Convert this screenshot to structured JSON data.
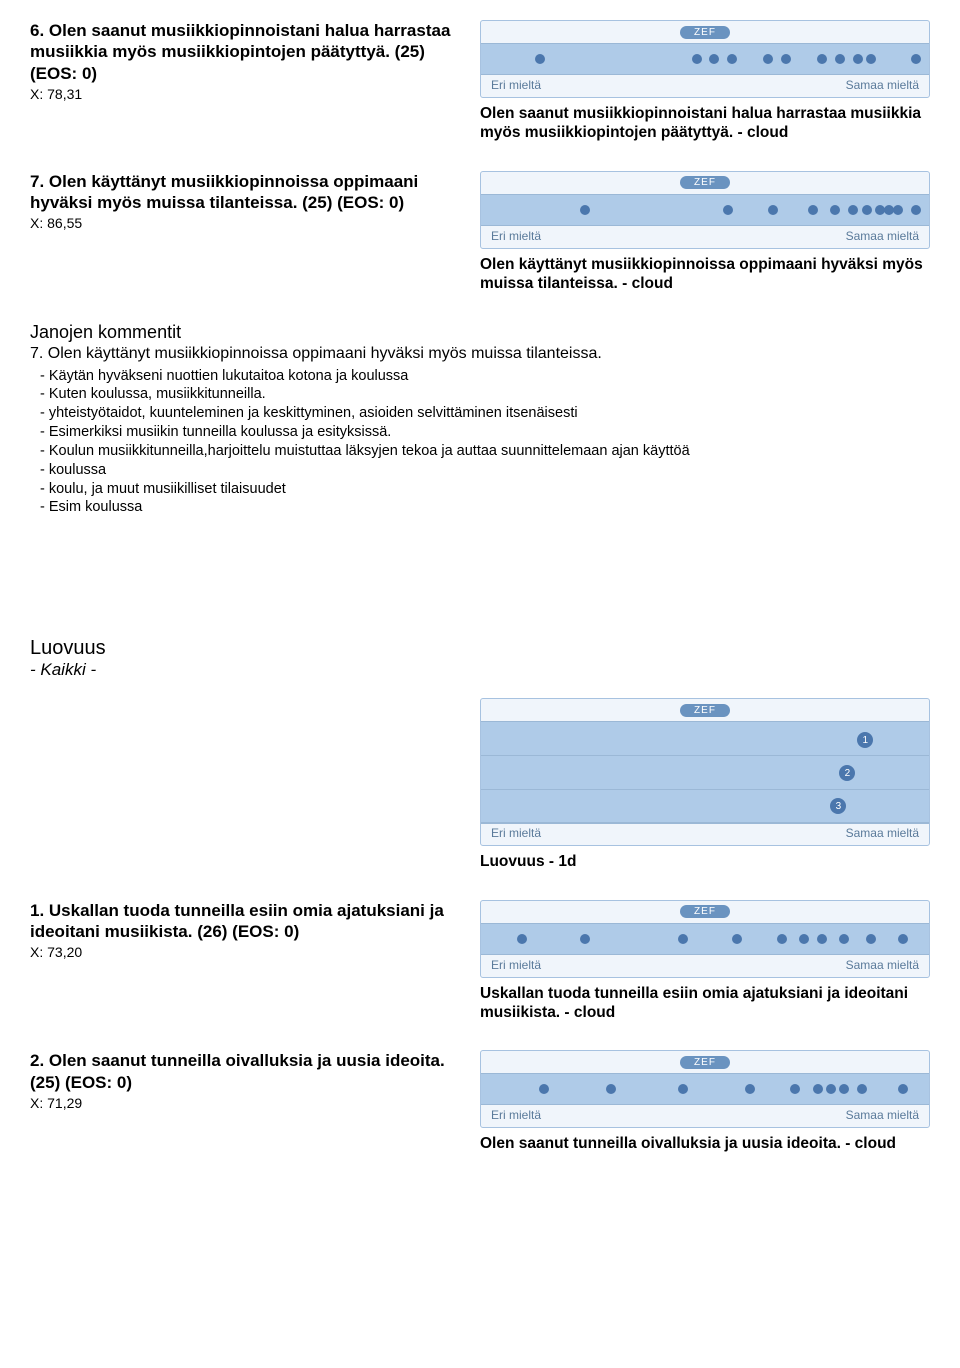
{
  "colors": {
    "chart_bg": "#f0f5fb",
    "chart_border": "#a7c2e0",
    "cloud_bg": "#afcbe8",
    "dot": "#4b77ad",
    "badge_bg": "#6a93c0",
    "footer_text": "#5a7a9a"
  },
  "zef_label": "ZEF",
  "axis": {
    "left": "Eri mieltä",
    "right": "Samaa mieltä"
  },
  "q6": {
    "title": "6. Olen saanut musiikkiopinnoistani halua harrastaa musiikkia myös musiikkiopintojen päätyttyä. (25) (EOS: 0)",
    "x": "X: 78,31",
    "caption": "Olen saanut musiikkiopinnoistani halua harrastaa musiikkia myös musiikkiopintojen päätyttyä. - cloud",
    "dots_pct": [
      12,
      47,
      51,
      55,
      63,
      67,
      75,
      79,
      83,
      86,
      96
    ]
  },
  "q7": {
    "title": "7. Olen käyttänyt musiikkiopinnoissa oppimaani hyväksi myös muissa tilanteissa. (25) (EOS: 0)",
    "x": "X: 86,55",
    "caption": "Olen käyttänyt musiikkiopinnoissa oppimaani hyväksi myös muissa tilanteissa. - cloud",
    "dots_pct": [
      22,
      54,
      64,
      73,
      78,
      82,
      85,
      88,
      90,
      92,
      96
    ]
  },
  "comments": {
    "header": "Janojen kommentit",
    "qline": "7. Olen käyttänyt musiikkiopinnoissa oppimaani hyväksi myös muissa tilanteissa.",
    "items": [
      "- Käytän hyväkseni nuottien lukutaitoa kotona ja koulussa",
      "- Kuten koulussa, musiikkitunneilla.",
      "- yhteistyötaidot, kuunteleminen ja keskittyminen, asioiden selvittäminen itsenäisesti",
      "- Esimerkiksi musiikin tunneilla koulussa ja esityksissä.",
      "- Koulun musiikkitunneilla,harjoittelu muistuttaa läksyjen tekoa ja auttaa suunnittelemaan ajan käyttöä",
      "- koulussa",
      "- koulu, ja muut musiikilliset tilaisuudet",
      "- Esim koulussa"
    ]
  },
  "luovuus": {
    "title": "Luovuus",
    "sub": "- Kaikki -",
    "overview_caption": "Luovuus - 1d",
    "num_positions": [
      {
        "n": "1",
        "left_pct": 84,
        "row": 0
      },
      {
        "n": "2",
        "left_pct": 80,
        "row": 1
      },
      {
        "n": "3",
        "left_pct": 78,
        "row": 2
      }
    ]
  },
  "lq1": {
    "title": "1. Uskallan tuoda tunneilla esiin omia ajatuksiani ja ideoitani musiikista. (26) (EOS: 0)",
    "x": "X: 73,20",
    "caption": "Uskallan tuoda tunneilla esiin omia ajatuksiani ja ideoitani musiikista. - cloud",
    "dots_pct": [
      8,
      22,
      44,
      56,
      66,
      71,
      75,
      80,
      86,
      93
    ]
  },
  "lq2": {
    "title": "2. Olen saanut tunneilla oivalluksia ja uusia ideoita. (25) (EOS: 0)",
    "x": "X: 71,29",
    "caption": "Olen saanut tunneilla oivalluksia ja uusia ideoita. - cloud",
    "dots_pct": [
      13,
      28,
      44,
      59,
      69,
      74,
      77,
      80,
      84,
      93
    ]
  }
}
